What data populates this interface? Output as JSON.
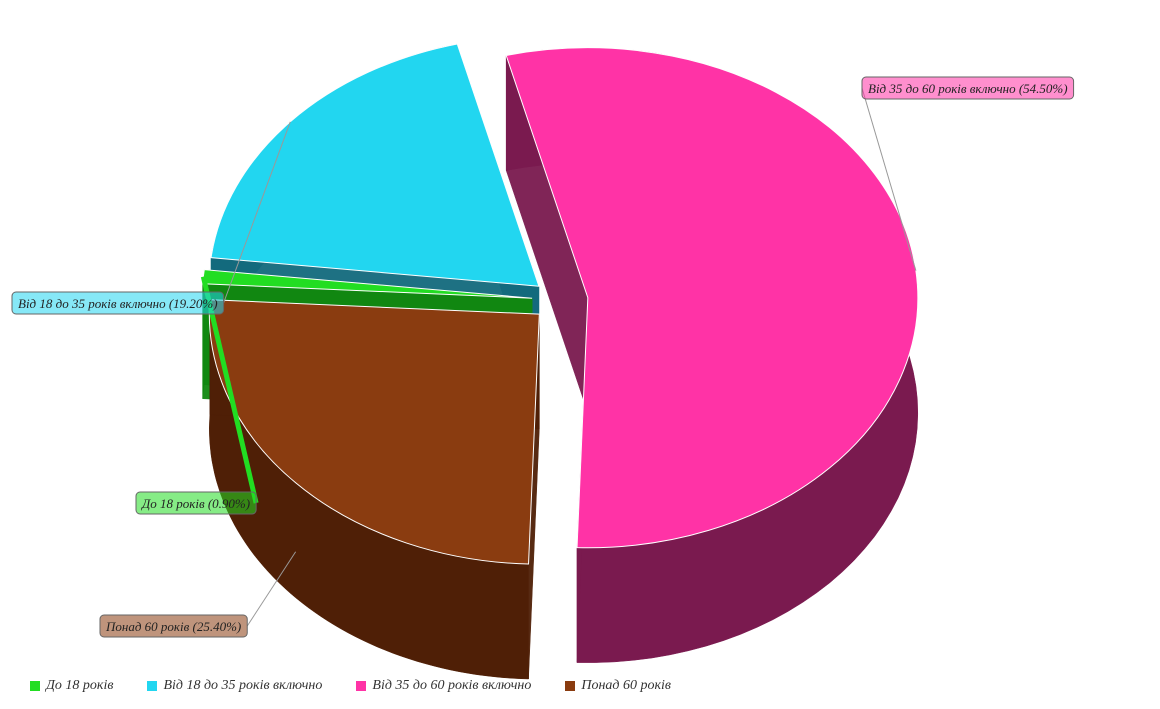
{
  "chart_data": {
    "type": "pie",
    "title": "",
    "slices": [
      {
        "label": "До 18 років",
        "value": 0.9,
        "callout": "До 18 років (0.90%)",
        "color": "#22dd22",
        "side_color": "#118811"
      },
      {
        "label": "Від 18 до 35 років включно",
        "value": 19.2,
        "callout": "Від 18 до 35 років включно (19.20%)",
        "color": "#22d6f0",
        "side_color": "#136a7d"
      },
      {
        "label": "Від 35 до 60 років включно",
        "value": 54.5,
        "callout": "Від 35 до 60 років включно (54.50%)",
        "color": "#ff33a6",
        "side_color": "#7a1a4f"
      },
      {
        "label": "Понад 60 років",
        "value": 25.4,
        "callout": "Понад 60 років (25.40%)",
        "color": "#8a3c10",
        "side_color": "#4f1f06"
      }
    ],
    "legend_position": "bottom-left"
  }
}
